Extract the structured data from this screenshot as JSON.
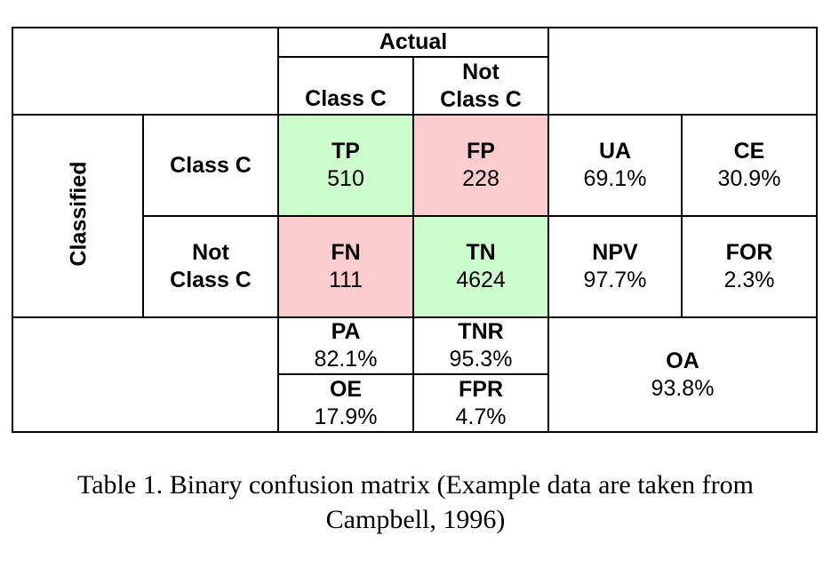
{
  "table": {
    "header": {
      "actual": "Actual",
      "col_class_c": "Class C",
      "col_not_class_c_line1": "Not",
      "col_not_class_c_line2": "Class C"
    },
    "side": {
      "classified": "Classified",
      "row_class_c": "Class C",
      "row_not_class_c_line1": "Not",
      "row_not_class_c_line2": "Class C"
    },
    "cells": {
      "tp": {
        "label": "TP",
        "value": "510"
      },
      "fp": {
        "label": "FP",
        "value": "228"
      },
      "fn": {
        "label": "FN",
        "value": "111"
      },
      "tn": {
        "label": "TN",
        "value": "4624"
      }
    },
    "right": {
      "ua": {
        "label": "UA",
        "value": "69.1%"
      },
      "ce": {
        "label": "CE",
        "value": "30.9%"
      },
      "npv": {
        "label": "NPV",
        "value": "97.7%"
      },
      "for": {
        "label": "FOR",
        "value": "2.3%"
      }
    },
    "bottom": {
      "pa": {
        "label": "PA",
        "value": "82.1%"
      },
      "tnr": {
        "label": "TNR",
        "value": "95.3%"
      },
      "oe": {
        "label": "OE",
        "value": "17.9%"
      },
      "fpr": {
        "label": "FPR",
        "value": "4.7%"
      },
      "oa": {
        "label": "OA",
        "value": "93.8%"
      }
    },
    "colors": {
      "correct": "#cdfccd",
      "error": "#fdcccc"
    }
  },
  "caption": {
    "line1": "Table 1. Binary confusion matrix (Example data are taken from",
    "line2": "Campbell, 1996)"
  }
}
